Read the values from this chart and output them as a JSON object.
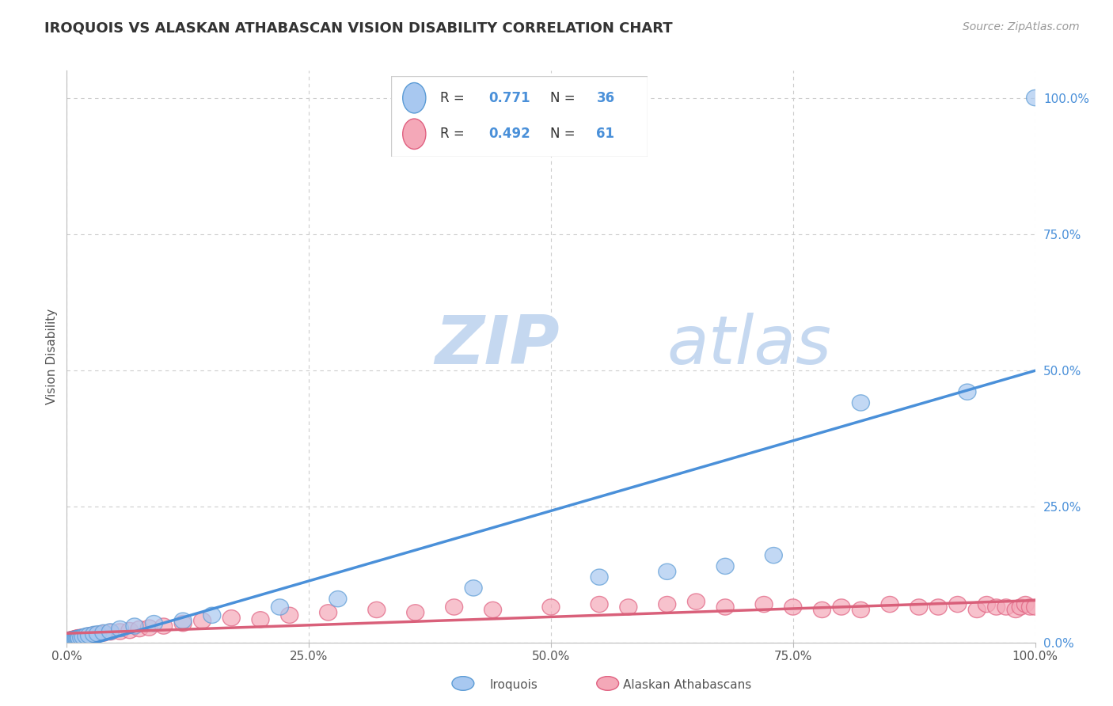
{
  "title": "IROQUOIS VS ALASKAN ATHABASCAN VISION DISABILITY CORRELATION CHART",
  "source": "Source: ZipAtlas.com",
  "ylabel": "Vision Disability",
  "xlim": [
    0,
    1.0
  ],
  "ylim": [
    0,
    1.05
  ],
  "xticks": [
    0.0,
    0.25,
    0.5,
    0.75,
    1.0
  ],
  "xtick_labels": [
    "0.0%",
    "25.0%",
    "50.0%",
    "75.0%",
    "100.0%"
  ],
  "ytick_positions": [
    0.0,
    0.25,
    0.5,
    0.75,
    1.0
  ],
  "ytick_labels": [
    "0.0%",
    "25.0%",
    "50.0%",
    "75.0%",
    "100.0%"
  ],
  "iroquois_color": "#A8C8F0",
  "athabascan_color": "#F4A8B8",
  "iroquois_edge_color": "#5B9BD5",
  "athabascan_edge_color": "#E06080",
  "iroquois_line_color": "#4A90D9",
  "athabascan_line_color": "#D9607A",
  "background_color": "#FFFFFF",
  "grid_color": "#CCCCCC",
  "legend_R_iroquois": "0.771",
  "legend_N_iroquois": "36",
  "legend_R_athabascan": "0.492",
  "legend_N_athabascan": "61",
  "iroquois_x": [
    0.001,
    0.002,
    0.003,
    0.004,
    0.005,
    0.006,
    0.007,
    0.008,
    0.009,
    0.01,
    0.011,
    0.012,
    0.013,
    0.015,
    0.017,
    0.02,
    0.023,
    0.028,
    0.032,
    0.038,
    0.045,
    0.055,
    0.07,
    0.09,
    0.12,
    0.15,
    0.22,
    0.28,
    0.42,
    0.55,
    0.62,
    0.68,
    0.73,
    0.82,
    0.93,
    1.0
  ],
  "iroquois_y": [
    0.003,
    0.003,
    0.004,
    0.004,
    0.005,
    0.005,
    0.005,
    0.006,
    0.006,
    0.007,
    0.007,
    0.008,
    0.008,
    0.009,
    0.01,
    0.012,
    0.013,
    0.015,
    0.016,
    0.018,
    0.02,
    0.025,
    0.03,
    0.035,
    0.04,
    0.05,
    0.065,
    0.08,
    0.1,
    0.12,
    0.13,
    0.14,
    0.16,
    0.44,
    0.46,
    1.0
  ],
  "athabascan_x": [
    0.001,
    0.002,
    0.003,
    0.004,
    0.005,
    0.006,
    0.007,
    0.008,
    0.009,
    0.01,
    0.011,
    0.012,
    0.014,
    0.016,
    0.018,
    0.02,
    0.022,
    0.025,
    0.028,
    0.032,
    0.038,
    0.045,
    0.055,
    0.065,
    0.075,
    0.085,
    0.1,
    0.12,
    0.14,
    0.17,
    0.2,
    0.23,
    0.27,
    0.32,
    0.36,
    0.4,
    0.44,
    0.5,
    0.55,
    0.58,
    0.62,
    0.65,
    0.68,
    0.72,
    0.75,
    0.78,
    0.8,
    0.82,
    0.85,
    0.88,
    0.9,
    0.92,
    0.94,
    0.95,
    0.96,
    0.97,
    0.98,
    0.985,
    0.99,
    0.995,
    1.0
  ],
  "athabascan_y": [
    0.004,
    0.004,
    0.005,
    0.005,
    0.005,
    0.006,
    0.006,
    0.007,
    0.007,
    0.008,
    0.008,
    0.009,
    0.009,
    0.01,
    0.01,
    0.011,
    0.012,
    0.013,
    0.014,
    0.015,
    0.017,
    0.019,
    0.02,
    0.022,
    0.025,
    0.027,
    0.03,
    0.035,
    0.04,
    0.045,
    0.042,
    0.05,
    0.055,
    0.06,
    0.055,
    0.065,
    0.06,
    0.065,
    0.07,
    0.065,
    0.07,
    0.075,
    0.065,
    0.07,
    0.065,
    0.06,
    0.065,
    0.06,
    0.07,
    0.065,
    0.065,
    0.07,
    0.06,
    0.07,
    0.065,
    0.065,
    0.06,
    0.065,
    0.07,
    0.065,
    0.065
  ],
  "watermark_zip": "ZIP",
  "watermark_atlas": "atlas",
  "watermark_color_zip": "#C5D8F0",
  "watermark_color_atlas": "#C5D8F0",
  "title_fontsize": 13,
  "source_fontsize": 10,
  "axis_label_fontsize": 11,
  "tick_fontsize": 11
}
